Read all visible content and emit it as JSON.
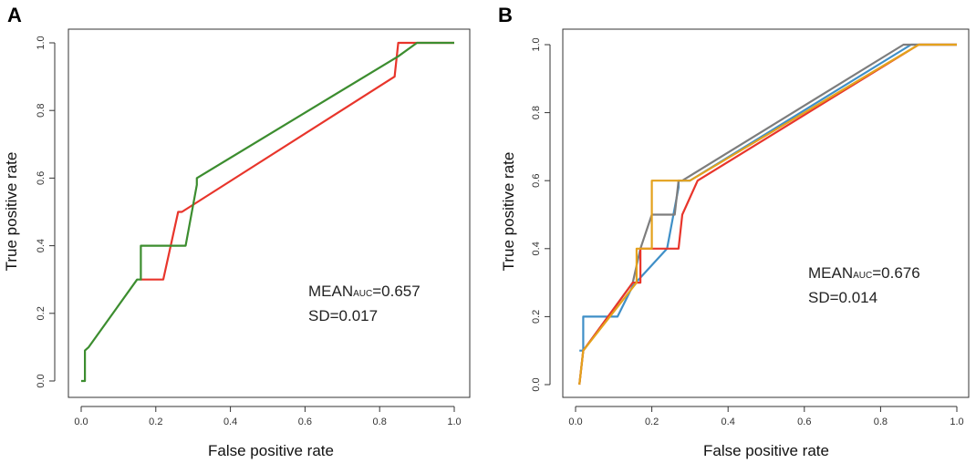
{
  "chart_data": [
    {
      "type": "line",
      "panel_label": "A",
      "title": "",
      "xlabel": "False positive rate",
      "ylabel": "True positive rate",
      "xlim": [
        0,
        1
      ],
      "ylim": [
        0,
        1
      ],
      "xticks": [
        "0.0",
        "0.2",
        "0.4",
        "0.6",
        "0.8",
        "1.0"
      ],
      "yticks": [
        "0.0",
        "0.2",
        "0.4",
        "0.6",
        "0.8",
        "1.0"
      ],
      "annotation": {
        "prefix": "MEAN",
        "sub": "AUC",
        "suffix": "=0.657",
        "sd": "SD=0.017"
      },
      "series": [
        {
          "name": "red",
          "color": "#e8352b",
          "x": [
            0.16,
            0.16,
            0.22,
            0.26,
            0.27,
            0.84,
            0.85,
            0.86,
            0.88,
            0.9,
            1.0
          ],
          "y": [
            0.3,
            0.3,
            0.3,
            0.5,
            0.5,
            0.9,
            1.0,
            1.0,
            1.0,
            1.0,
            1.0
          ]
        },
        {
          "name": "green",
          "color": "#3c8d2f",
          "x": [
            0.0,
            0.01,
            0.01,
            0.02,
            0.15,
            0.16,
            0.16,
            0.28,
            0.31,
            0.31,
            0.85,
            0.9,
            1.0
          ],
          "y": [
            0.0,
            0.0,
            0.09,
            0.1,
            0.3,
            0.3,
            0.4,
            0.4,
            0.58,
            0.6,
            0.96,
            1.0,
            1.0
          ]
        }
      ]
    },
    {
      "type": "line",
      "panel_label": "B",
      "title": "",
      "xlabel": "False positive rate",
      "ylabel": "True positive rate",
      "xlim": [
        0,
        1
      ],
      "ylim": [
        0,
        1
      ],
      "xticks": [
        "0.0",
        "0.2",
        "0.4",
        "0.6",
        "0.8",
        "1.0"
      ],
      "yticks": [
        "0.0",
        "0.2",
        "0.4",
        "0.6",
        "0.8",
        "1.0"
      ],
      "annotation": {
        "prefix": "MEAN",
        "sub": "AUC",
        "suffix": "=0.676",
        "sd": "SD=0.014"
      },
      "series": [
        {
          "name": "blue",
          "color": "#3f8fc7",
          "x": [
            0.01,
            0.02,
            0.02,
            0.11,
            0.15,
            0.24,
            0.27,
            0.27,
            0.3,
            0.88,
            1.0
          ],
          "y": [
            0.1,
            0.1,
            0.2,
            0.2,
            0.29,
            0.4,
            0.58,
            0.6,
            0.6,
            1.0,
            1.0
          ]
        },
        {
          "name": "gray",
          "color": "#7d7d7d",
          "x": [
            0.01,
            0.02,
            0.15,
            0.17,
            0.2,
            0.26,
            0.27,
            0.28,
            0.86,
            0.9,
            1.0
          ],
          "y": [
            0.0,
            0.1,
            0.3,
            0.4,
            0.5,
            0.5,
            0.6,
            0.6,
            1.0,
            1.0,
            1.0
          ]
        },
        {
          "name": "red",
          "color": "#e8352b",
          "x": [
            0.01,
            0.02,
            0.15,
            0.17,
            0.17,
            0.27,
            0.28,
            0.28,
            0.32,
            0.9,
            1.0
          ],
          "y": [
            0.0,
            0.1,
            0.3,
            0.3,
            0.4,
            0.4,
            0.5,
            0.5,
            0.6,
            1.0,
            1.0
          ]
        },
        {
          "name": "orange",
          "color": "#e4a11c",
          "x": [
            0.01,
            0.02,
            0.16,
            0.16,
            0.2,
            0.2,
            0.28,
            0.3,
            0.9,
            1.0
          ],
          "y": [
            0.0,
            0.1,
            0.3,
            0.4,
            0.4,
            0.6,
            0.6,
            0.6,
            1.0,
            1.0
          ]
        }
      ]
    }
  ]
}
